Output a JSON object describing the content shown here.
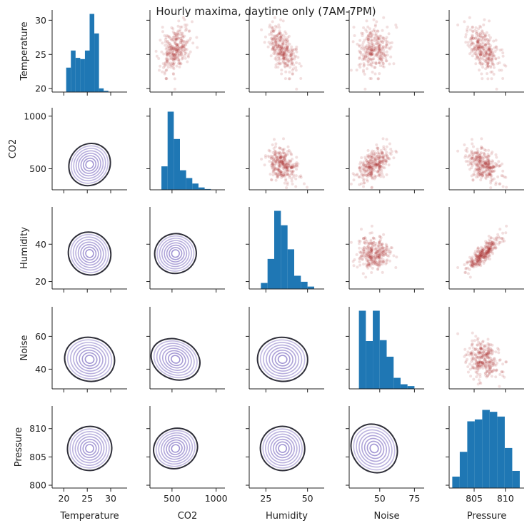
{
  "chart_data": {
    "type": "pairplot",
    "title": "Hourly maxima, daytime only (7AM-7PM)",
    "variables": [
      "Temperature",
      "CO2",
      "Humidity",
      "Noise",
      "Pressure"
    ],
    "diagonal": "histogram",
    "upper": "scatter",
    "lower": "kde",
    "colors": {
      "histogram": "#1f77b4",
      "scatter": "#a52a2a",
      "kde_outer": "#2f2f3a",
      "kde_inner": "#9c8fd0"
    },
    "axes": {
      "Temperature": {
        "range": [
          17.5,
          33.5
        ],
        "ticks": [
          20,
          25,
          30
        ],
        "ylim": [
          19.5,
          31.5
        ],
        "yticks": [
          20,
          25,
          30
        ]
      },
      "CO2": {
        "range": [
          250,
          1100
        ],
        "ticks": [
          500,
          1000
        ],
        "ylim": [
          300,
          1080
        ],
        "yticks": [
          500,
          1000
        ]
      },
      "Humidity": {
        "range": [
          15,
          60
        ],
        "ticks": [
          25,
          50
        ],
        "ylim": [
          16,
          60
        ],
        "yticks": [
          20,
          40
        ]
      },
      "Noise": {
        "range": [
          28,
          82
        ],
        "ticks": [
          50,
          75
        ],
        "ylim": [
          28,
          78
        ],
        "yticks": [
          40,
          60
        ]
      },
      "Pressure": {
        "range": [
          801,
          813
        ],
        "ticks": [
          805,
          810
        ],
        "ylim": [
          799.5,
          814
        ],
        "yticks": [
          800,
          805,
          810
        ]
      }
    },
    "histograms": {
      "Temperature": {
        "bins": [
          20.5,
          21.5,
          22.5,
          23.5,
          24.5,
          25.5,
          26.5,
          27.5,
          28.5,
          29.5,
          30.5
        ],
        "counts": [
          20,
          34,
          28,
          27,
          34,
          64,
          48,
          3,
          1,
          0
        ]
      },
      "CO2": {
        "bins": [
          380,
          450,
          520,
          590,
          660,
          730,
          800,
          870,
          940
        ],
        "counts": [
          30,
          100,
          65,
          25,
          15,
          8,
          3,
          1
        ]
      },
      "Humidity": {
        "bins": [
          22,
          26,
          30,
          34,
          38,
          42,
          46,
          50,
          54
        ],
        "counts": [
          5,
          25,
          65,
          53,
          33,
          11,
          6,
          2
        ]
      },
      "Noise": {
        "bins": [
          35,
          40,
          45,
          50,
          55,
          60,
          65,
          70,
          75
        ],
        "counts": [
          85,
          52,
          85,
          53,
          35,
          12,
          5,
          3
        ]
      },
      "Pressure": {
        "bins": [
          801.5,
          802.7,
          803.9,
          805.1,
          806.3,
          807.5,
          808.7,
          809.9,
          811.1,
          812.3
        ],
        "counts": [
          12,
          38,
          70,
          72,
          82,
          80,
          75,
          42,
          18
        ]
      }
    },
    "scatter_model": {
      "n": 300,
      "means": {
        "Temperature": 25.5,
        "CO2": 540,
        "Humidity": 35,
        "Noise": 46,
        "Pressure": 806.5
      },
      "sds": {
        "Temperature": 2.3,
        "CO2": 110,
        "Humidity": 6.5,
        "Noise": 9,
        "Pressure": 2.3
      },
      "correlations": {
        "Temperature-CO2": 0.35,
        "Temperature-Humidity": -0.55,
        "Temperature-Noise": 0.15,
        "Temperature-Pressure": -0.65,
        "CO2-Humidity": -0.1,
        "CO2-Noise": 0.45,
        "CO2-Pressure": -0.3,
        "Humidity-Noise": 0.05,
        "Humidity-Pressure": 0.5,
        "Noise-Pressure": -0.1
      }
    }
  }
}
